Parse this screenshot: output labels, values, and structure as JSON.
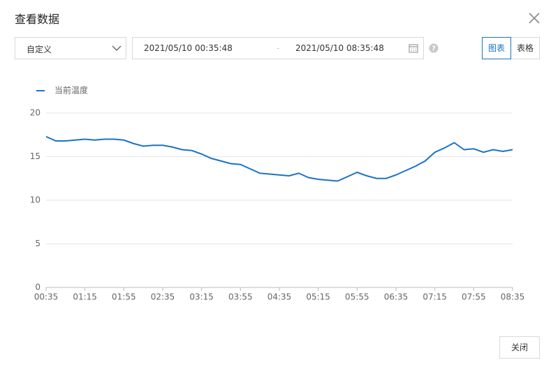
{
  "dialog": {
    "title": "查看数据",
    "close_button": "关闭"
  },
  "filters": {
    "range_select": "自定义",
    "start": "2021/05/10 00:35:48",
    "separator": "-",
    "end": "2021/05/10 08:35:48",
    "view_tabs": [
      "图表",
      "表格"
    ]
  },
  "chart_data": {
    "type": "line",
    "categories": [
      "00:35",
      "00:45",
      "00:55",
      "01:05",
      "01:15",
      "01:25",
      "01:35",
      "01:45",
      "01:55",
      "02:05",
      "02:15",
      "02:25",
      "02:35",
      "02:45",
      "02:55",
      "03:05",
      "03:15",
      "03:25",
      "03:35",
      "03:45",
      "03:55",
      "04:05",
      "04:15",
      "04:25",
      "04:35",
      "04:45",
      "04:55",
      "05:05",
      "05:15",
      "05:25",
      "05:35",
      "05:45",
      "05:55",
      "06:05",
      "06:15",
      "06:25",
      "06:35",
      "06:45",
      "06:55",
      "07:05",
      "07:15",
      "07:25",
      "07:35",
      "07:45",
      "07:55",
      "08:05",
      "08:15",
      "08:25",
      "08:35"
    ],
    "series": [
      {
        "name": "当前温度",
        "color": "#1a73c5",
        "values": [
          17.3,
          16.8,
          16.8,
          16.9,
          17.0,
          16.9,
          17.0,
          17.0,
          16.9,
          16.5,
          16.2,
          16.3,
          16.3,
          16.1,
          15.8,
          15.7,
          15.3,
          14.8,
          14.5,
          14.2,
          14.1,
          13.6,
          13.1,
          13.0,
          12.9,
          12.8,
          13.1,
          12.6,
          12.4,
          12.3,
          12.2,
          12.7,
          13.2,
          12.8,
          12.5,
          12.5,
          12.9,
          13.4,
          13.9,
          14.5,
          15.5,
          16.0,
          16.6,
          15.8,
          15.9,
          15.5,
          15.8,
          15.6,
          15.8
        ]
      }
    ],
    "xticks": [
      "00:35",
      "01:15",
      "01:55",
      "02:35",
      "03:15",
      "03:55",
      "04:35",
      "05:15",
      "05:55",
      "06:35",
      "07:15",
      "07:55",
      "08:35"
    ],
    "ylim": [
      0,
      20
    ],
    "yticks": [
      0,
      5,
      10,
      15,
      20
    ],
    "grid": true,
    "legend": "top-left"
  }
}
